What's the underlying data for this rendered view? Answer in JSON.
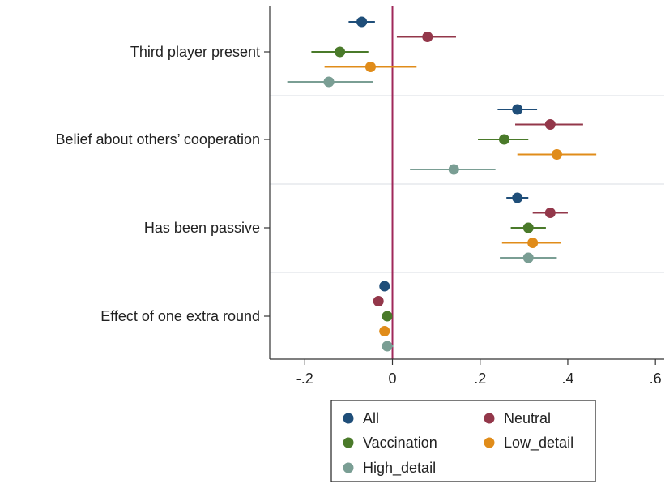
{
  "chart_data": {
    "type": "scatter",
    "orientation": "horizontal",
    "categories": [
      "Third player present",
      "Belief about others’ cooperation",
      "Has been passive",
      "Effect of one extra round"
    ],
    "xlim": [
      -0.28,
      0.62
    ],
    "xticks": [
      {
        "value": -0.2,
        "label": "-.2"
      },
      {
        "value": 0,
        "label": "0"
      },
      {
        "value": 0.2,
        "label": ".2"
      },
      {
        "value": 0.4,
        "label": ".4"
      },
      {
        "value": 0.6,
        "label": ".6"
      }
    ],
    "reference_line": 0,
    "series": [
      {
        "name": "All",
        "color": "#1f4e79",
        "points": [
          {
            "estimate": -0.07,
            "ci": [
              -0.1,
              -0.04
            ]
          },
          {
            "estimate": 0.285,
            "ci": [
              0.24,
              0.33
            ]
          },
          {
            "estimate": 0.285,
            "ci": [
              0.26,
              0.31
            ]
          },
          {
            "estimate": -0.018,
            "ci": [
              -0.025,
              -0.01
            ]
          }
        ]
      },
      {
        "name": "Neutral",
        "color": "#93374a",
        "points": [
          {
            "estimate": 0.08,
            "ci": [
              0.01,
              0.145
            ]
          },
          {
            "estimate": 0.36,
            "ci": [
              0.28,
              0.435
            ]
          },
          {
            "estimate": 0.36,
            "ci": [
              0.32,
              0.4
            ]
          },
          {
            "estimate": -0.032,
            "ci": [
              -0.04,
              -0.022
            ]
          }
        ]
      },
      {
        "name": "Vaccination",
        "color": "#4a7a2a",
        "points": [
          {
            "estimate": -0.12,
            "ci": [
              -0.185,
              -0.055
            ]
          },
          {
            "estimate": 0.255,
            "ci": [
              0.195,
              0.31
            ]
          },
          {
            "estimate": 0.31,
            "ci": [
              0.27,
              0.35
            ]
          },
          {
            "estimate": -0.012,
            "ci": [
              -0.02,
              -0.004
            ]
          }
        ]
      },
      {
        "name": "Low_detail",
        "color": "#e08c1a",
        "points": [
          {
            "estimate": -0.05,
            "ci": [
              -0.155,
              0.055
            ]
          },
          {
            "estimate": 0.375,
            "ci": [
              0.285,
              0.465
            ]
          },
          {
            "estimate": 0.32,
            "ci": [
              0.25,
              0.385
            ]
          },
          {
            "estimate": -0.018,
            "ci": [
              -0.03,
              -0.006
            ]
          }
        ]
      },
      {
        "name": "High_detail",
        "color": "#7a9e94",
        "points": [
          {
            "estimate": -0.145,
            "ci": [
              -0.24,
              -0.045
            ]
          },
          {
            "estimate": 0.14,
            "ci": [
              0.04,
              0.235
            ]
          },
          {
            "estimate": 0.31,
            "ci": [
              0.245,
              0.375
            ]
          },
          {
            "estimate": -0.012,
            "ci": [
              -0.025,
              0.002
            ]
          }
        ]
      }
    ],
    "legend": {
      "placement": "bottom",
      "entries": [
        "All",
        "Neutral",
        "Vaccination",
        "Low_detail",
        "High_detail"
      ]
    }
  },
  "colors": {
    "reference_line": "#a0285a",
    "axis": "#333333",
    "separator": "#d8dee3"
  }
}
